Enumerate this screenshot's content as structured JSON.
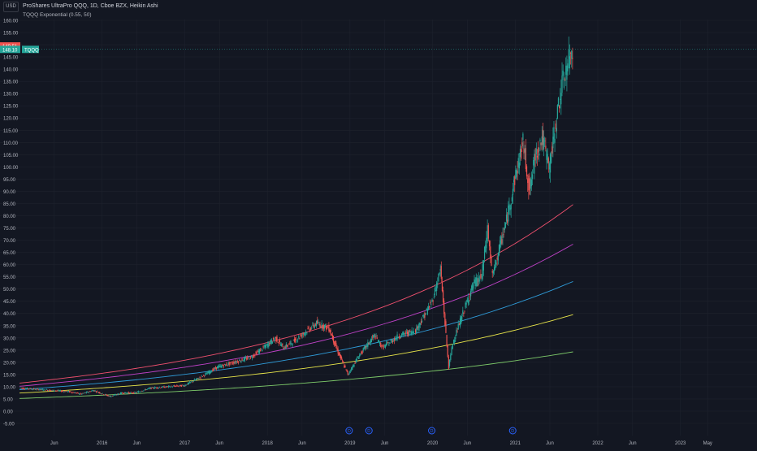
{
  "header": {
    "currency": "USD",
    "title": "ProShares UltraPro QQQ, 1D, Cboe BZX, Heikin Ashi",
    "indicator": "TQQQ Exponential (0.55, 50)"
  },
  "price_badges": {
    "upper": "149.51",
    "lower": "148.10",
    "symbol": "TQQQ"
  },
  "colors": {
    "background": "#131722",
    "grid": "#1e222d",
    "up": "#26a69a",
    "down": "#ef5350",
    "band_red": "#f0506e",
    "band_magenta": "#c042c8",
    "band_blue": "#2f9bd8",
    "band_yellow": "#e8e54a",
    "band_green": "#7ecb6a",
    "badge_red": "#ef5350",
    "badge_green": "#26a69a"
  },
  "chart_data": {
    "type": "line",
    "title": "ProShares UltraPro QQQ, 1D, Cboe BZX, Heikin Ashi",
    "ylim": [
      -5,
      160
    ],
    "y_ticks": [
      "160.00",
      "155.00",
      "150.00",
      "145.00",
      "140.00",
      "135.00",
      "130.00",
      "125.00",
      "120.00",
      "115.00",
      "110.00",
      "105.00",
      "100.00",
      "95.00",
      "90.00",
      "85.00",
      "80.00",
      "75.00",
      "70.00",
      "65.00",
      "60.00",
      "55.00",
      "50.00",
      "45.00",
      "40.00",
      "35.00",
      "30.00",
      "25.00",
      "20.00",
      "15.00",
      "10.00",
      "5.00",
      "0.00",
      "-5.00"
    ],
    "x_ticks": [
      {
        "label": "Jun",
        "t": 2015.42
      },
      {
        "label": "2016",
        "t": 2016.0
      },
      {
        "label": "Jun",
        "t": 2016.42
      },
      {
        "label": "2017",
        "t": 2017.0
      },
      {
        "label": "Jun",
        "t": 2017.42
      },
      {
        "label": "2018",
        "t": 2018.0
      },
      {
        "label": "Jun",
        "t": 2018.42
      },
      {
        "label": "2019",
        "t": 2019.0
      },
      {
        "label": "Jun",
        "t": 2019.42
      },
      {
        "label": "2020",
        "t": 2020.0
      },
      {
        "label": "Jun",
        "t": 2020.42
      },
      {
        "label": "2021",
        "t": 2021.0
      },
      {
        "label": "Jun",
        "t": 2021.42
      },
      {
        "label": "2022",
        "t": 2022.0
      },
      {
        "label": "Jun",
        "t": 2022.42
      },
      {
        "label": "2023",
        "t": 2023.0
      },
      {
        "label": "May",
        "t": 2023.33
      }
    ],
    "event_markers": [
      {
        "label": "D",
        "t": 2018.99
      },
      {
        "label": "D",
        "t": 2019.23
      },
      {
        "label": "D",
        "t": 2019.99
      },
      {
        "label": "D",
        "t": 2020.97
      }
    ],
    "series": [
      {
        "name": "TQQQ",
        "x": [
          2015.0,
          2015.2,
          2015.4,
          2015.6,
          2015.75,
          2015.9,
          2016.1,
          2016.25,
          2016.4,
          2016.6,
          2016.8,
          2017.0,
          2017.2,
          2017.4,
          2017.6,
          2017.8,
          2018.0,
          2018.1,
          2018.2,
          2018.3,
          2018.45,
          2018.6,
          2018.75,
          2018.85,
          2018.98,
          2019.1,
          2019.3,
          2019.4,
          2019.6,
          2019.8,
          2020.0,
          2020.1,
          2020.2,
          2020.25,
          2020.35,
          2020.5,
          2020.6,
          2020.67,
          2020.73,
          2020.8,
          2020.9,
          2021.0,
          2021.1,
          2021.18,
          2021.25,
          2021.33,
          2021.42,
          2021.55,
          2021.62,
          2021.7
        ],
        "values": [
          9.5,
          9.0,
          8.5,
          8.0,
          7.0,
          8.5,
          6.0,
          7.5,
          7.5,
          9.5,
          10.0,
          10.5,
          14.0,
          18.0,
          20.0,
          22.0,
          27.0,
          30.0,
          26.0,
          28.0,
          32.0,
          36.0,
          34.0,
          25.0,
          15.0,
          22.0,
          31.0,
          26.0,
          31.0,
          33.0,
          45.0,
          58.0,
          18.0,
          28.0,
          38.0,
          52.0,
          55.0,
          75.0,
          55.0,
          65.0,
          78.0,
          95.0,
          110.0,
          90.0,
          105.0,
          112.0,
          100.0,
          130.0,
          140.0,
          148.0
        ]
      }
    ],
    "bands": [
      {
        "name": "red",
        "a": 11.5,
        "b": 7.42
      },
      {
        "name": "magenta",
        "a": 10.2,
        "b": 6.76
      },
      {
        "name": "blue",
        "a": 8.8,
        "b": 6.08
      },
      {
        "name": "yellow",
        "a": 7.4,
        "b": 5.38
      },
      {
        "name": "green",
        "a": 5.2,
        "b": 4.7
      }
    ],
    "bands_x_range": [
      2015.0,
      2021.73
    ]
  }
}
